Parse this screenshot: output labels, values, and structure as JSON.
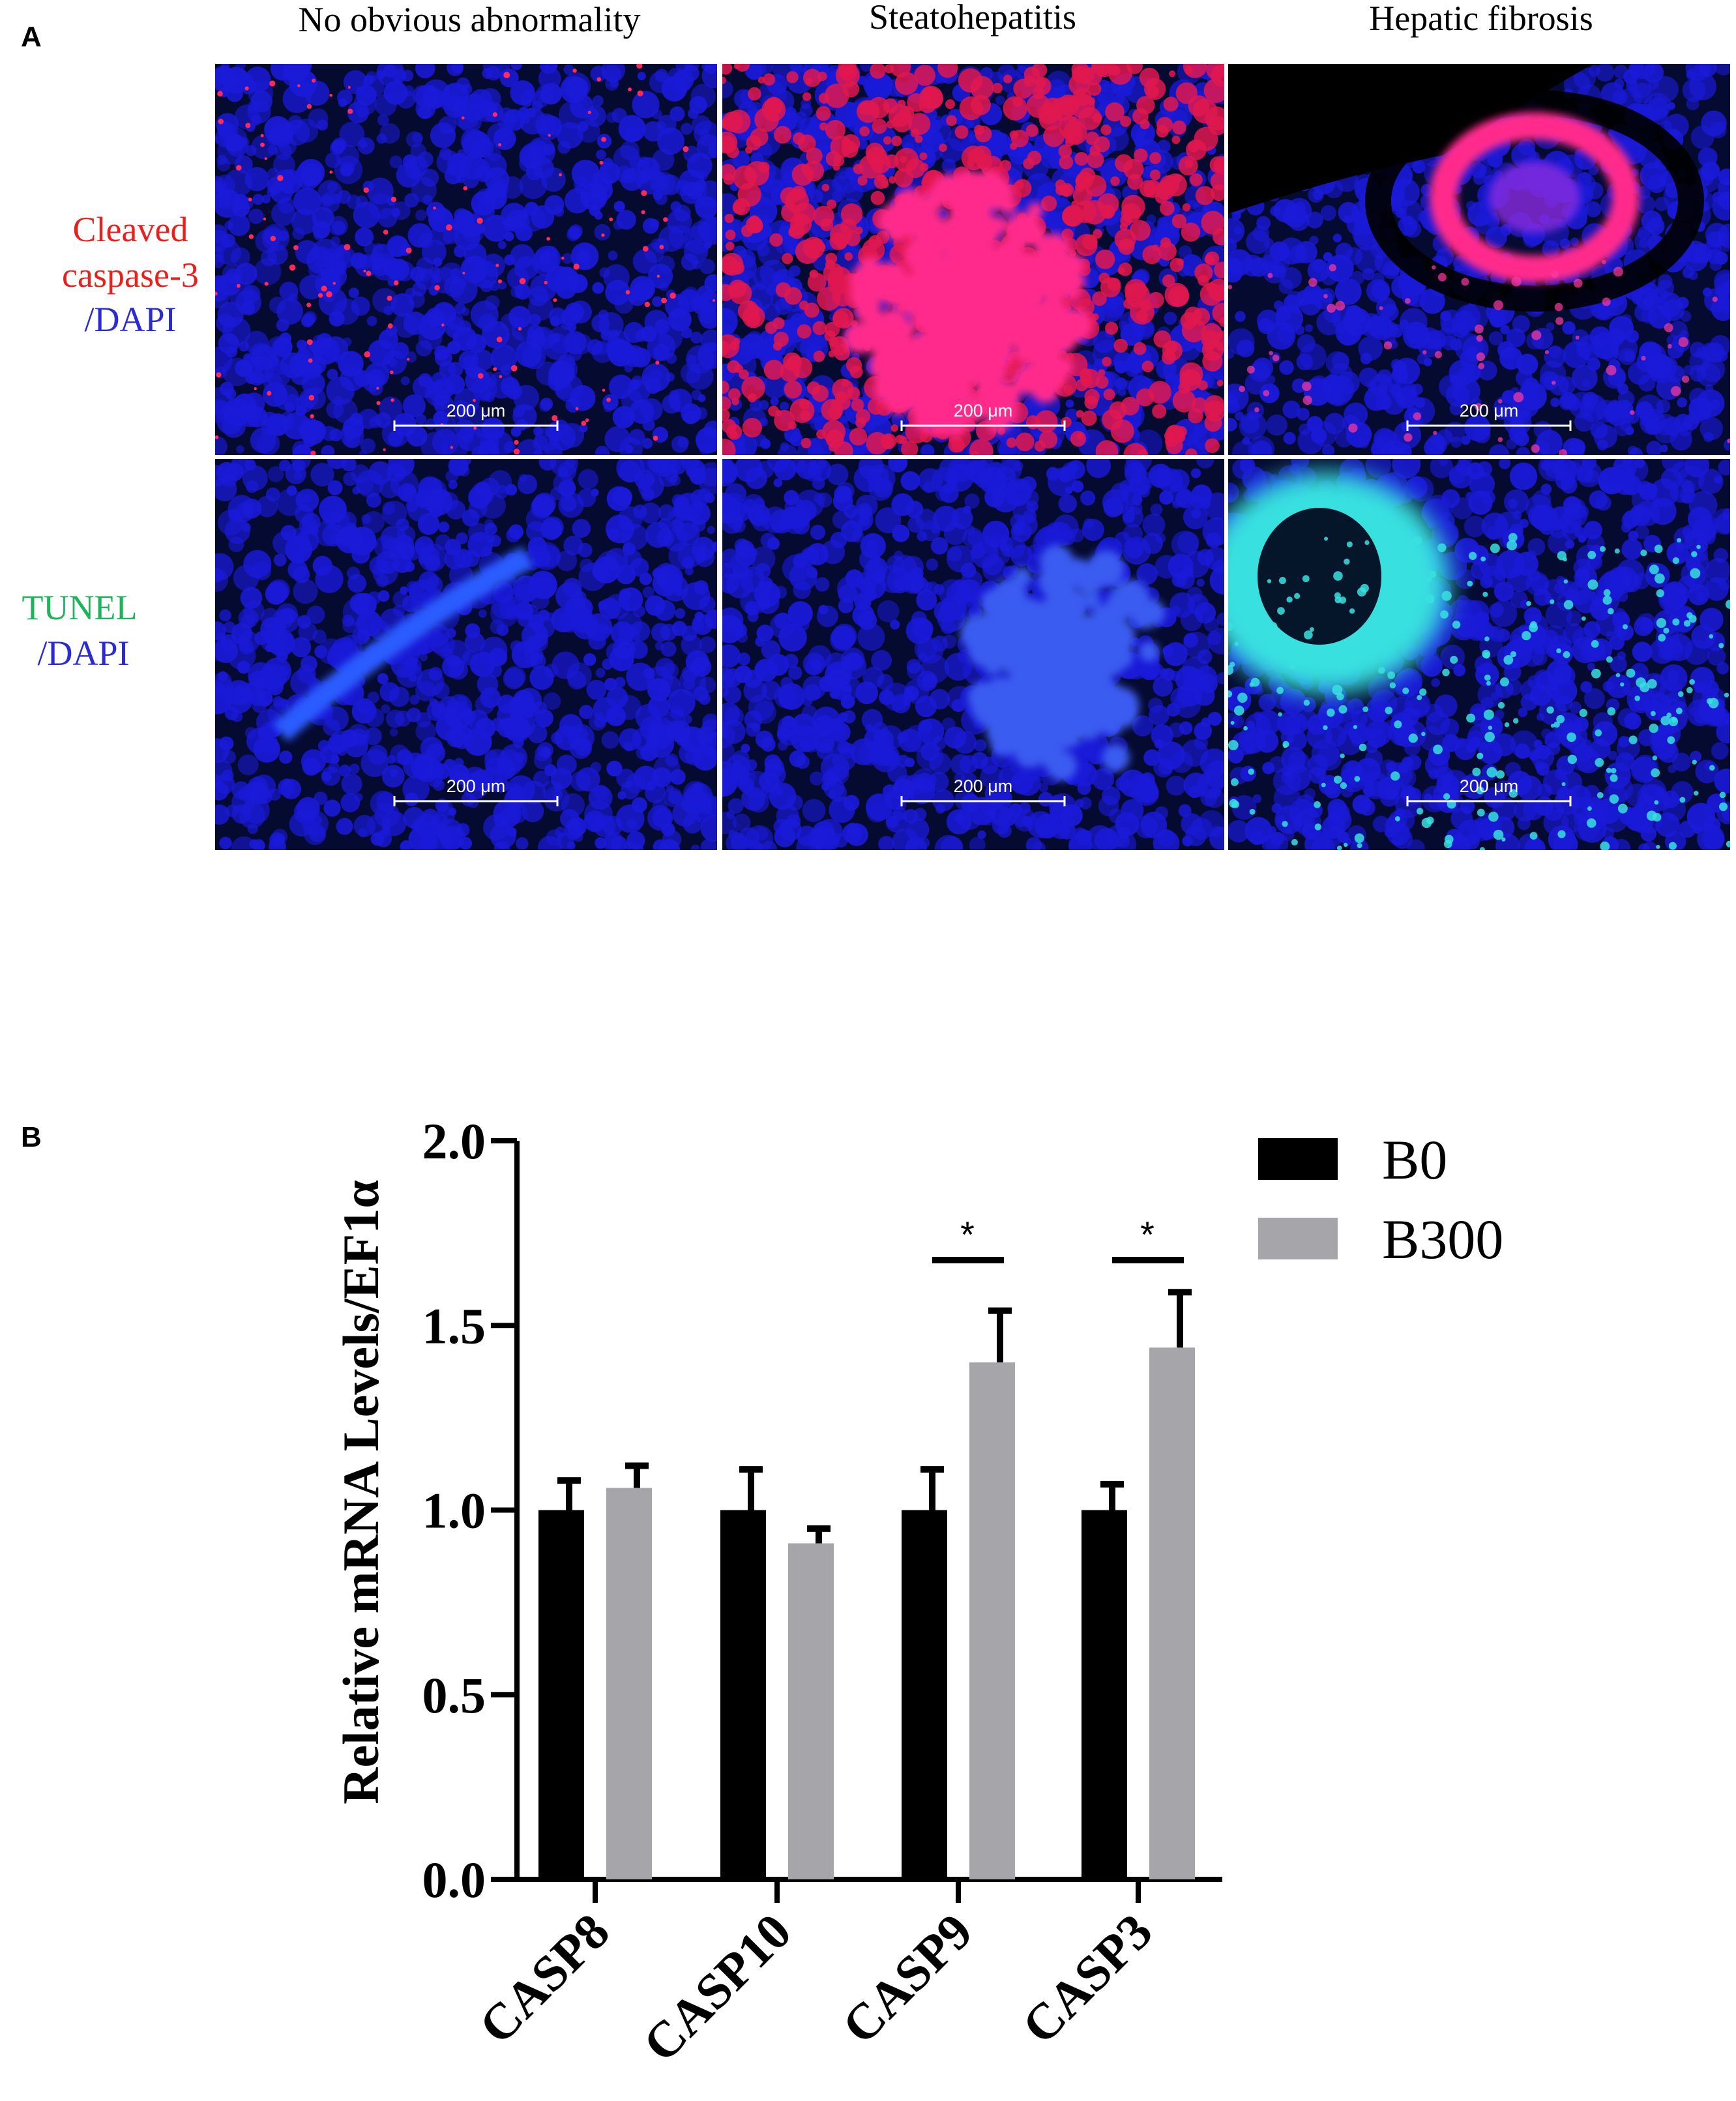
{
  "panel_a": {
    "letter": "A",
    "columns": [
      "No obvious abnormality",
      "Steatohepatitis",
      "Hepatic fibrosis"
    ],
    "rows": [
      {
        "label_lines": [
          [
            {
              "text": "Cleaved",
              "color": "#e8211f"
            }
          ],
          [
            {
              "text": "caspase-3",
              "color": "#e8211f"
            }
          ],
          [
            {
              "text": "/DAPI",
              "color": "#2a2ad6"
            }
          ]
        ]
      },
      {
        "label_lines": [
          [
            {
              "text": "TUNEL",
              "color": "#1fb35a"
            }
          ],
          [
            {
              "text": "/DAPI",
              "color": "#2a2ad6"
            }
          ]
        ]
      }
    ],
    "scale_bar": "200 μm",
    "colors": {
      "dapi": "#1a1ad8",
      "caspase": "#ff2a8c",
      "tunel": "#38e0e0",
      "background": "#050a30"
    }
  },
  "panel_b": {
    "letter": "B"
  },
  "chart_data": {
    "type": "bar",
    "title": "",
    "xlabel": "",
    "ylabel": "Relative mRNA Levels/EF1α",
    "categories": [
      "CASP8",
      "CASP10",
      "CASP9",
      "CASP3"
    ],
    "series": [
      {
        "name": "B0",
        "color": "#000000",
        "values": [
          1.0,
          1.0,
          1.0,
          1.0
        ],
        "errors": [
          0.08,
          0.11,
          0.11,
          0.07
        ]
      },
      {
        "name": "B300",
        "color": "#a6a6aa",
        "values": [
          1.06,
          0.91,
          1.4,
          1.44
        ],
        "errors": [
          0.06,
          0.04,
          0.14,
          0.15
        ]
      }
    ],
    "ylim": [
      0,
      2.0
    ],
    "yticks": [
      "0.0",
      "0.5",
      "1.0",
      "1.5",
      "2.0"
    ],
    "significance": [
      {
        "category": "CASP9",
        "label": "*"
      },
      {
        "category": "CASP3",
        "label": "*"
      }
    ],
    "legend_position": "top-right"
  }
}
